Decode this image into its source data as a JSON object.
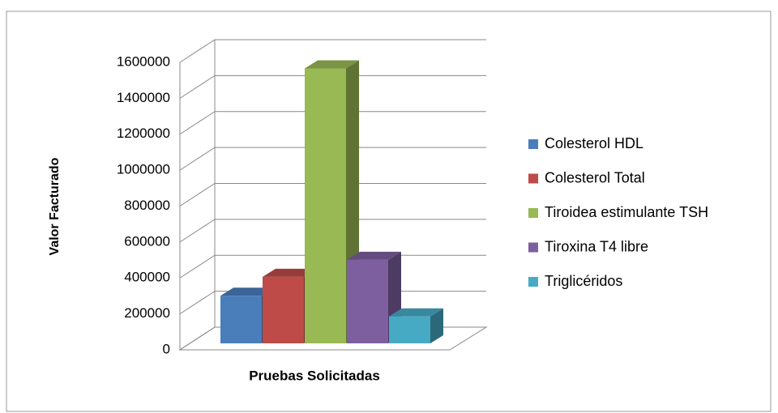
{
  "chart_data": {
    "type": "bar3d",
    "x_label": "Pruebas Solicitadas",
    "y_label": "Valor Facturado",
    "categories": [
      null
    ],
    "series": [
      {
        "name": "Colesterol HDL",
        "color": "#4a7ebb",
        "values": [
          265000
        ]
      },
      {
        "name": "Colesterol Total",
        "color": "#be4b48",
        "values": [
          370000
        ]
      },
      {
        "name": "Tiroidea estimulante TSH",
        "color": "#98b954",
        "values": [
          1530000
        ]
      },
      {
        "name": "Tiroxina T4  libre",
        "color": "#7d5fa0",
        "values": [
          465000
        ]
      },
      {
        "name": "Triglicéridos",
        "color": "#46aac5",
        "values": [
          150000
        ]
      }
    ],
    "ylim": [
      0,
      1600000
    ],
    "yticks": [
      0,
      200000,
      400000,
      600000,
      800000,
      1000000,
      1200000,
      1400000,
      1600000
    ],
    "grid": true,
    "legend": "right"
  }
}
